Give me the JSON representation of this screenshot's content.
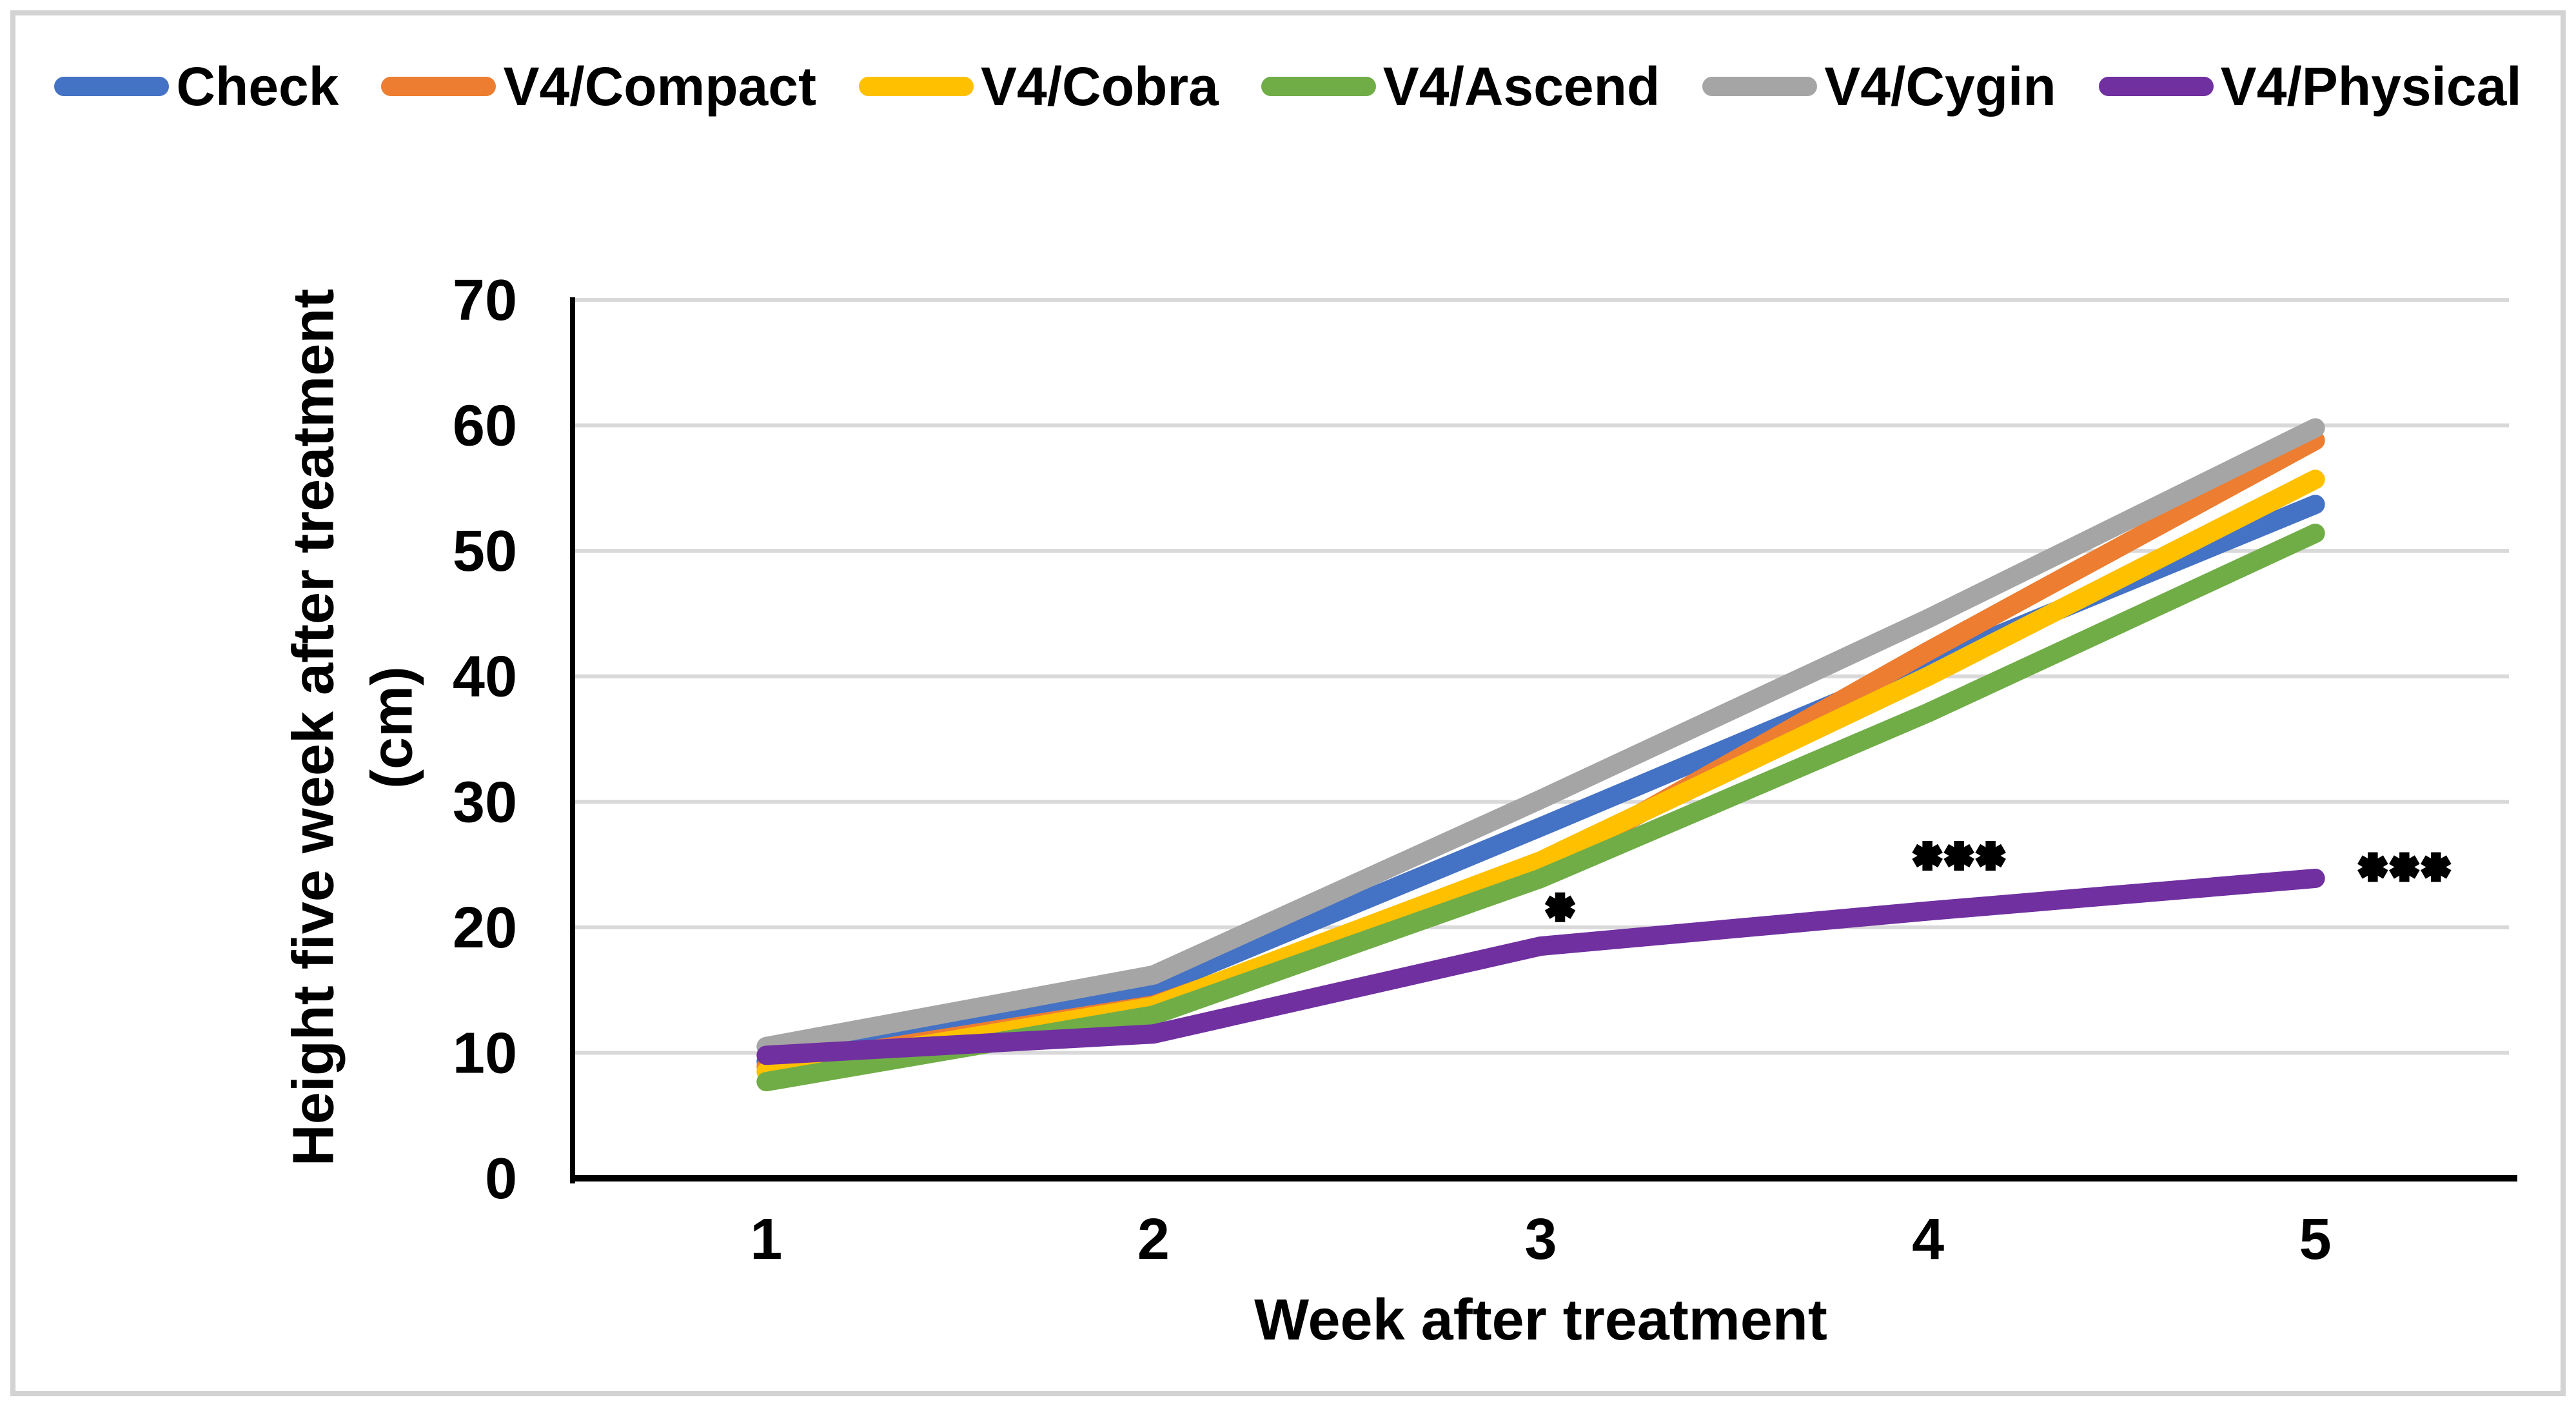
{
  "figure": {
    "background": "#FFFFFF",
    "border_color": "#D3D3D3",
    "axis_color": "#000000",
    "gridline_color": "#D9D9D9",
    "annotation_color": "#000000"
  },
  "legend": {
    "position": "top",
    "items": [
      {
        "label": "Check",
        "color": "#4472C4"
      },
      {
        "label": "V4/Compact",
        "color": "#ED7D31"
      },
      {
        "label": "V4/Cobra",
        "color": "#FFC000"
      },
      {
        "label": "V4/Ascend",
        "color": "#70AD47"
      },
      {
        "label": "V4/Cygin",
        "color": "#A5A5A5"
      },
      {
        "label": "V4/Physical",
        "color": "#7030A0"
      }
    ]
  },
  "chart_data": {
    "type": "line",
    "title": "",
    "xlabel": "Week after treatment",
    "ylabel": "Height five week after treatment",
    "ylabel_unit": "(cm)",
    "categories": [
      1,
      2,
      3,
      4,
      5
    ],
    "x_ticks": [
      "1",
      "2",
      "3",
      "4",
      "5"
    ],
    "y_ticks": [
      "0",
      "10",
      "20",
      "30",
      "40",
      "50",
      "60",
      "70"
    ],
    "ylim": [
      0,
      70
    ],
    "grid": "horizontal",
    "legend_position": "top",
    "series": [
      {
        "name": "Check",
        "color": "#4472C4",
        "values": [
          9.3,
          15.2,
          28.0,
          41.0,
          53.7
        ]
      },
      {
        "name": "V4/Compact",
        "color": "#ED7D31",
        "values": [
          8.9,
          13.8,
          24.6,
          42.0,
          58.8
        ]
      },
      {
        "name": "V4/Cobra",
        "color": "#FFC000",
        "values": [
          8.5,
          13.7,
          25.3,
          40.0,
          55.7
        ]
      },
      {
        "name": "V4/Ascend",
        "color": "#70AD47",
        "values": [
          7.7,
          13.0,
          23.9,
          37.1,
          51.4
        ]
      },
      {
        "name": "V4/Cygin",
        "color": "#A5A5A5",
        "values": [
          10.5,
          16.2,
          30.2,
          44.6,
          59.8
        ]
      },
      {
        "name": "V4/Physical",
        "color": "#7030A0",
        "values": [
          9.8,
          11.5,
          18.5,
          21.3,
          23.9
        ]
      }
    ],
    "annotations": [
      {
        "text": "*",
        "week": 3.05,
        "value": 21.6
      },
      {
        "text": "***",
        "week": 4.08,
        "value": 25.7
      },
      {
        "text": "***",
        "week": 5.23,
        "value": 24.8
      }
    ]
  }
}
